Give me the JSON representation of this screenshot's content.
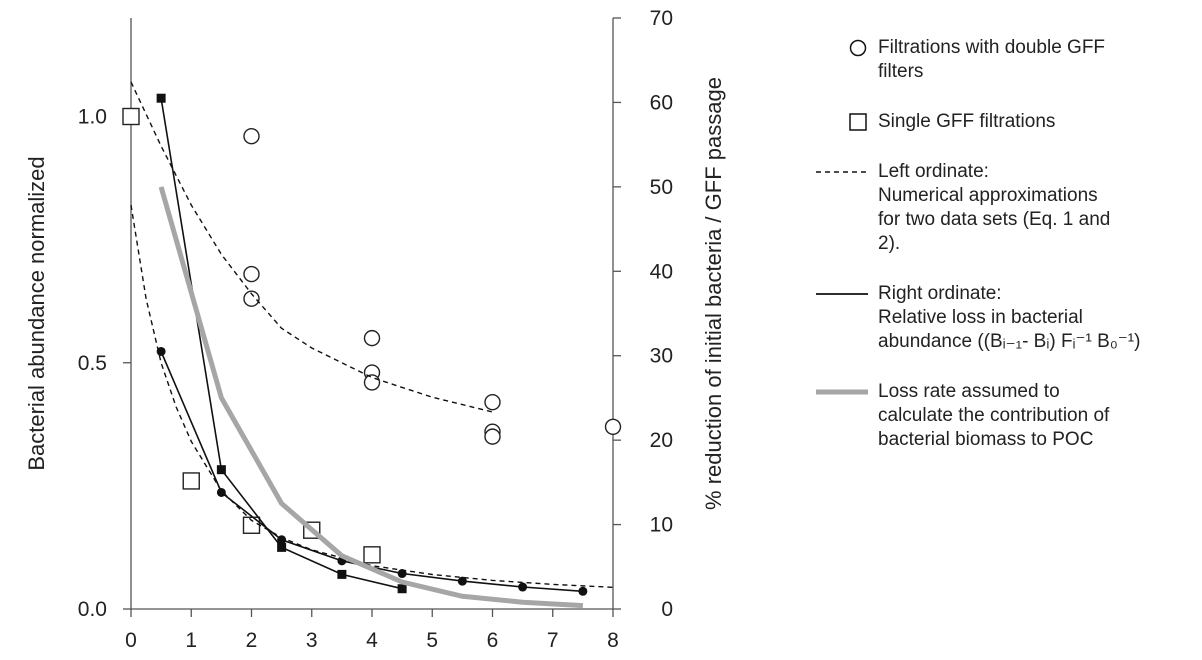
{
  "chart_data": {
    "type": "scatter",
    "xlabel": "",
    "ylabel_left": "Bacterial abundance normalized",
    "ylabel_right": "% reduction of initial bacteria / GFF passage",
    "xlim": [
      0,
      8
    ],
    "ylim_left": [
      0,
      1.2
    ],
    "ylim_right": [
      0,
      70
    ],
    "x_ticks": [
      "0",
      "1",
      "2",
      "3",
      "4",
      "5",
      "6",
      "7",
      "8"
    ],
    "y_left_ticks": [
      {
        "value": 0.0,
        "label": "0.0"
      },
      {
        "value": 0.5,
        "label": "0.5"
      },
      {
        "value": 1.0,
        "label": "1.0"
      }
    ],
    "y_right_ticks": [
      "0",
      "10",
      "20",
      "30",
      "40",
      "50",
      "60",
      "70"
    ],
    "grid": false,
    "legend_position": "right",
    "series": [
      {
        "name": "Filtrations with double GFF filters",
        "marker": "open-circle",
        "axis": "left",
        "x": [
          2,
          2,
          2,
          4,
          4,
          4,
          6,
          6,
          6,
          8
        ],
        "y": [
          0.96,
          0.68,
          0.63,
          0.55,
          0.48,
          0.46,
          0.42,
          0.36,
          0.35,
          0.37
        ]
      },
      {
        "name": "Single GFF filtrations",
        "marker": "open-square",
        "axis": "left",
        "x": [
          0,
          1,
          2,
          3,
          4
        ],
        "y": [
          1.0,
          0.26,
          0.17,
          0.16,
          0.11
        ]
      },
      {
        "name": "Left ordinate: Numerical approximations for two data sets (Eq. 1 and 2).",
        "style": "dashed",
        "axis": "left",
        "x": [
          0,
          0.5,
          1,
          1.5,
          2,
          2.5,
          3,
          3.5,
          4,
          4.5,
          5,
          5.5,
          6
        ],
        "y": [
          1.07,
          0.94,
          0.82,
          0.72,
          0.64,
          0.57,
          0.53,
          0.5,
          0.47,
          0.45,
          0.43,
          0.415,
          0.4
        ]
      },
      {
        "name": "",
        "style": "dashed",
        "axis": "left",
        "x": [
          0,
          0.25,
          0.5,
          0.75,
          1,
          1.5,
          2,
          2.5,
          3,
          4,
          5,
          6,
          7,
          8
        ],
        "y": [
          0.82,
          0.63,
          0.5,
          0.41,
          0.34,
          0.24,
          0.18,
          0.145,
          0.12,
          0.088,
          0.07,
          0.058,
          0.05,
          0.044
        ]
      },
      {
        "name": "Right ordinate: Relative loss in bacterial abundance ((Bi-1- Bi) Fi-1 B0-1)",
        "style": "solid",
        "marker": "filled-circle",
        "axis": "right",
        "x": [
          0.5,
          1.5,
          2.5,
          3.5,
          4.5,
          5.5,
          6.5,
          7.5
        ],
        "y": [
          30.5,
          13.8,
          8.2,
          5.7,
          4.2,
          3.3,
          2.6,
          2.1
        ]
      },
      {
        "name": "",
        "style": "solid",
        "marker": "filled-square",
        "axis": "right",
        "x": [
          0.5,
          1.5,
          2.5,
          3.5,
          4.5
        ],
        "y": [
          60.5,
          16.5,
          7.3,
          4.1,
          2.4
        ]
      },
      {
        "name": "Loss rate assumed to calculate the contribution of bacterial biomass to POC",
        "style": "thick-gray",
        "axis": "right",
        "x": [
          0.5,
          1.5,
          2.5,
          3.5,
          4.5,
          5.5,
          6.5,
          7.5
        ],
        "y": [
          50,
          25,
          12.5,
          6.3,
          3.2,
          1.5,
          0.8,
          0.4
        ]
      }
    ]
  },
  "legend": {
    "items": [
      {
        "symbol": "open-circle",
        "text": "Filtrations with double GFF\nfilters"
      },
      {
        "symbol": "open-square",
        "text": "Single GFF filtrations"
      },
      {
        "symbol": "dashed",
        "text": "Left ordinate:\nNumerical approximations\nfor two data sets (Eq. 1 and\n2)."
      },
      {
        "symbol": "solid",
        "text": "Right ordinate:\nRelative loss in bacterial\nabundance ((Bᵢ₋₁- Bᵢ) Fᵢ⁻¹ B₀⁻¹)"
      },
      {
        "symbol": "thick-gray",
        "text": "Loss rate assumed to\ncalculate the contribution of\nbacterial biomass to POC"
      }
    ]
  },
  "colors": {
    "marks": "#111111",
    "gray_line": "#a6a6a6",
    "axis": "#555555"
  }
}
